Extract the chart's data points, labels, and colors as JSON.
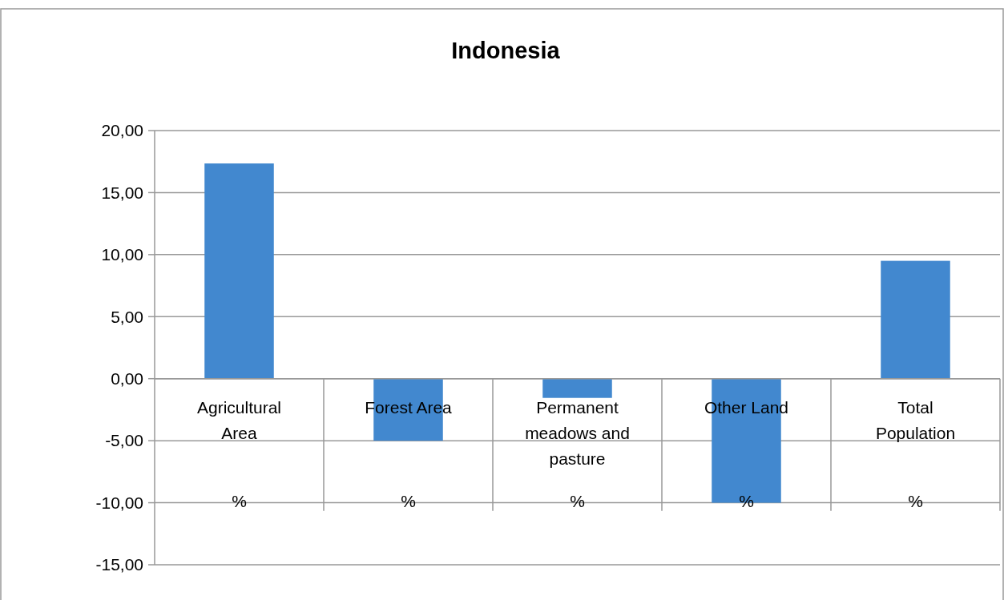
{
  "chart_data": {
    "type": "bar",
    "title": "Indonesia",
    "categories": [
      "Agricultural Area",
      "Forest Area",
      "Permanent meadows and pasture",
      "Other Land",
      "Total Population"
    ],
    "values": [
      17.35,
      -5.0,
      -1.55,
      -10.0,
      9.5
    ],
    "color": "#4288cf",
    "ylim": [
      -15,
      20
    ],
    "yticks": [
      {
        "value": -15,
        "label": "-15,00"
      },
      {
        "value": -10,
        "label": "-10,00"
      },
      {
        "value": -5,
        "label": "-5,00"
      },
      {
        "value": 0,
        "label": "0,00"
      },
      {
        "value": 5,
        "label": "5,00"
      },
      {
        "value": 10,
        "label": "10,00"
      },
      {
        "value": 15,
        "label": "15,00"
      },
      {
        "value": 20,
        "label": "20,00"
      }
    ],
    "grid": "y",
    "annotations": [
      "%",
      "%",
      "%",
      "%",
      "%"
    ]
  }
}
